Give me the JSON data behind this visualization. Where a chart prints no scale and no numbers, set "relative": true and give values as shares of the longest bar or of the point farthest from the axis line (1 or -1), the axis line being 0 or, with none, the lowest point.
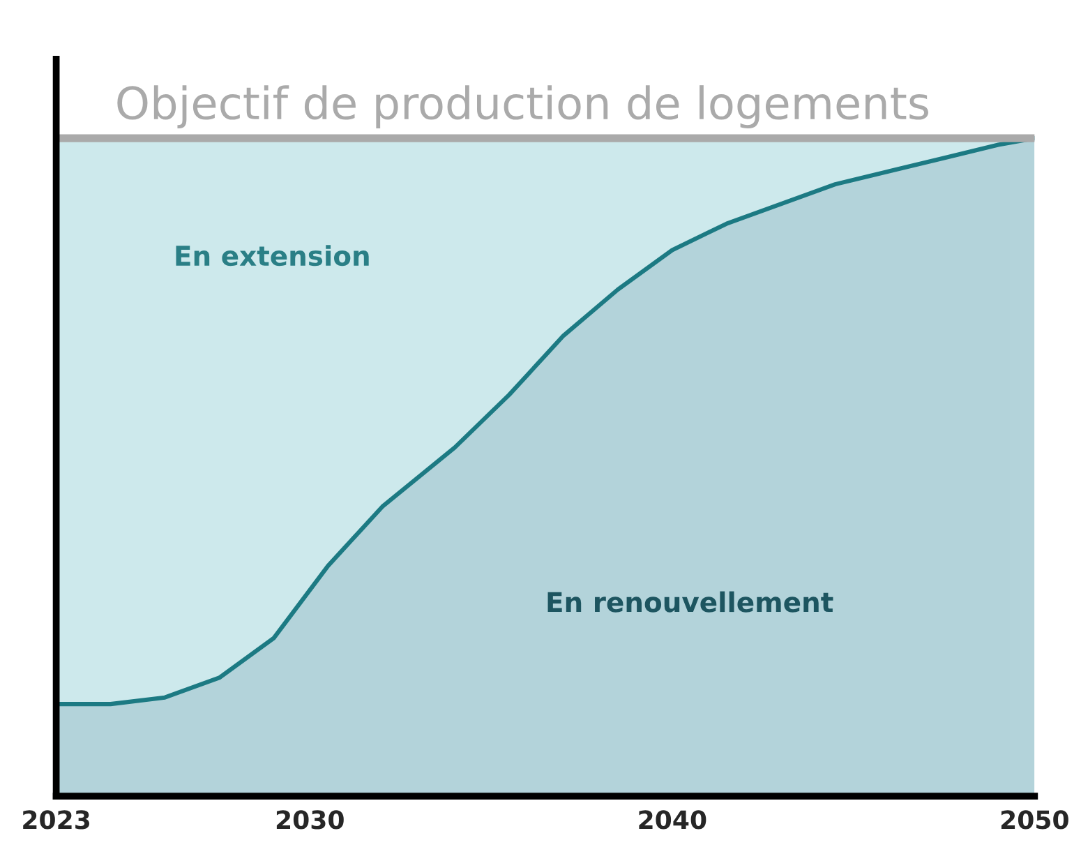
{
  "chart_data": {
    "type": "area",
    "stacked": true,
    "relative": true,
    "x": [
      2023,
      2024.5,
      2026,
      2027.5,
      2029,
      2030.5,
      2032,
      2034,
      2035.5,
      2037,
      2038.5,
      2040,
      2041.5,
      2043,
      2044.5,
      2046,
      2047.5,
      2049,
      2050
    ],
    "series": [
      {
        "name": "En renouvellement",
        "color": "#b3d3da",
        "values": [
          0.14,
          0.14,
          0.15,
          0.18,
          0.24,
          0.35,
          0.44,
          0.53,
          0.61,
          0.7,
          0.77,
          0.83,
          0.87,
          0.9,
          0.93,
          0.95,
          0.97,
          0.99,
          1.0
        ]
      },
      {
        "name": "En extension",
        "color": "#cde9ec",
        "values": [
          0.86,
          0.86,
          0.85,
          0.82,
          0.76,
          0.65,
          0.56,
          0.47,
          0.39,
          0.3,
          0.23,
          0.17,
          0.13,
          0.1,
          0.07,
          0.05,
          0.03,
          0.01,
          0.0
        ]
      }
    ],
    "xlim": [
      2023,
      2050
    ],
    "xticks": [
      2023,
      2030,
      2040,
      2050
    ],
    "ref_lines": [
      {
        "axis": "y",
        "value": 1,
        "label": "Objectif de production de logements",
        "color": "#aaaaaa"
      }
    ],
    "grid": false,
    "legend": false
  }
}
